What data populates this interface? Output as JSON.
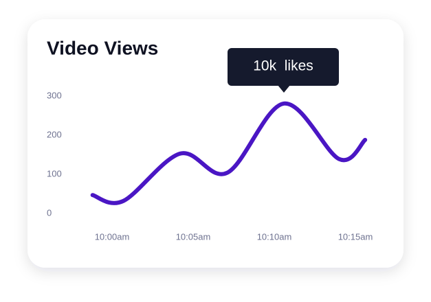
{
  "chart_data": {
    "type": "line",
    "title": "Video Views",
    "annotation": "10k  likes",
    "x": [
      -1.2,
      0.7,
      4.2,
      7.1,
      10.6,
      14,
      15.6
    ],
    "xlim": [
      -2,
      16.5
    ],
    "xticks": [
      {
        "value": 0,
        "label": "10:00am"
      },
      {
        "value": 5,
        "label": "10:05am"
      },
      {
        "value": 10,
        "label": "10:10am"
      },
      {
        "value": 15,
        "label": "10:15am"
      }
    ],
    "ylim": [
      0,
      300
    ],
    "yticks": [
      0,
      100,
      200,
      300
    ],
    "series": [
      {
        "color": "#4a16c4",
        "values": [
          47,
          32,
          153,
          104,
          281,
          139,
          188
        ]
      }
    ]
  }
}
